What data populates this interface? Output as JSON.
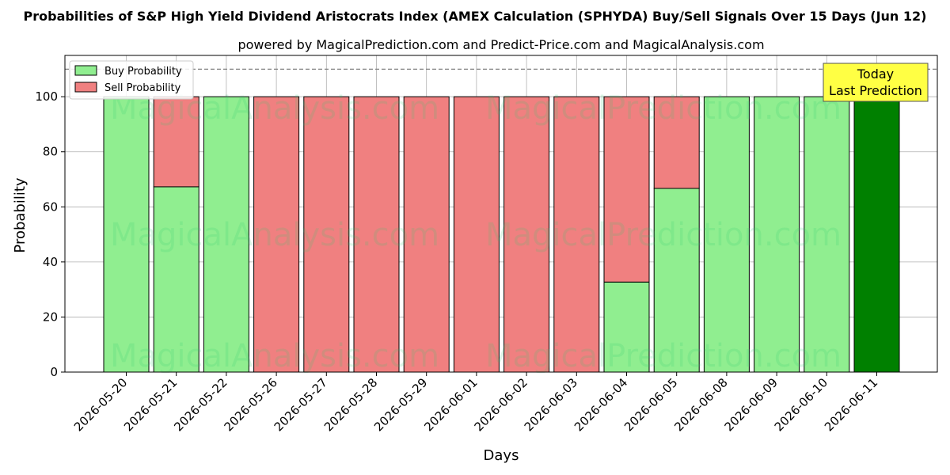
{
  "chart_data": {
    "type": "bar",
    "stacked": true,
    "title": "Probabilities of S&P High Yield Dividend Aristocrats Index (AMEX Calculation (SPHYDA) Buy/Sell Signals Over 15 Days (Jun 12)",
    "subtitle": "powered by MagicalPrediction.com and Predict-Price.com and MagicalAnalysis.com",
    "xlabel": "Days",
    "ylabel": "Probability",
    "ylim": [
      0,
      115
    ],
    "yticks": [
      0,
      20,
      40,
      60,
      80,
      100
    ],
    "reference_line": 110,
    "grid": true,
    "legend_position": "top-left",
    "categories": [
      "2026-05-20",
      "2026-05-21",
      "2026-05-22",
      "2026-05-26",
      "2026-05-27",
      "2026-05-28",
      "2026-05-29",
      "2026-06-01",
      "2026-06-02",
      "2026-06-03",
      "2026-06-04",
      "2026-06-05",
      "2026-06-08",
      "2026-06-09",
      "2026-06-10",
      "2026-06-11"
    ],
    "series": [
      {
        "name": "Buy Probability",
        "color": "#90ee90",
        "values": [
          100,
          67.3,
          100,
          0,
          0,
          0,
          0,
          0,
          0,
          0,
          32.7,
          66.7,
          100,
          100,
          100,
          100
        ]
      },
      {
        "name": "Sell Probability",
        "color": "#f08080",
        "values": [
          0,
          32.7,
          0,
          100,
          100,
          100,
          100,
          100,
          100,
          100,
          67.3,
          33.3,
          0,
          0,
          0,
          0
        ]
      }
    ],
    "highlight": {
      "index": 15,
      "color": "#008000"
    },
    "annotation": {
      "lines": [
        "Today",
        "Last Prediction"
      ],
      "background": "#ffff44"
    },
    "watermarks": [
      "MagicalAnalysis.com",
      "MagicalPrediction.com"
    ]
  }
}
